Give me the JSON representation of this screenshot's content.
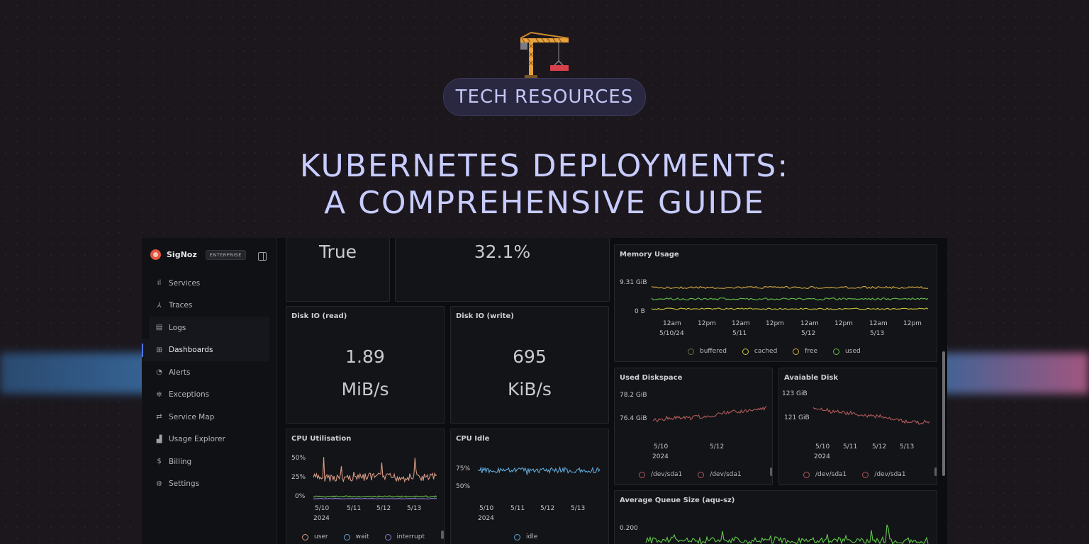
{
  "hero": {
    "pill": "TECH RESOURCES",
    "line1": "KUBERNETES DEPLOYMENTS:",
    "line2": "A COMPREHENSIVE GUIDE"
  },
  "app": {
    "brand": "SigNoz",
    "badge": "ENTERPRISE",
    "nav": [
      {
        "label": "Services",
        "icon": "bar-chart-icon"
      },
      {
        "label": "Traces",
        "icon": "traces-icon"
      },
      {
        "label": "Logs",
        "icon": "scroll-icon"
      },
      {
        "label": "Dashboards",
        "icon": "grid-icon"
      },
      {
        "label": "Alerts",
        "icon": "bell-icon"
      },
      {
        "label": "Exceptions",
        "icon": "bug-icon"
      },
      {
        "label": "Service Map",
        "icon": "route-icon"
      },
      {
        "label": "Usage Explorer",
        "icon": "chart-icon"
      },
      {
        "label": "Billing",
        "icon": "receipt-icon"
      },
      {
        "label": "Settings",
        "icon": "gear-icon"
      }
    ]
  },
  "panels": {
    "top_left_value": "True",
    "top_right_value": "32.1%",
    "disk_read": {
      "title": "Disk IO (read)",
      "value": "1.89",
      "unit": "MiB/s"
    },
    "disk_write": {
      "title": "Disk IO (write)",
      "value": "695",
      "unit": "KiB/s"
    },
    "cpu_util": {
      "title": "CPU Utilisation",
      "y_ticks": [
        "50%",
        "25%",
        "0%"
      ],
      "x_ticks": [
        "5/10",
        "5/11",
        "5/12",
        "5/13"
      ],
      "x_year": "2024",
      "legend": [
        "user",
        "wait",
        "interrupt"
      ]
    },
    "cpu_idle": {
      "title": "CPU Idle",
      "y_ticks": [
        "75%",
        "50%"
      ],
      "x_ticks": [
        "5/10",
        "5/11",
        "5/12",
        "5/13"
      ],
      "x_year": "2024",
      "legend": [
        "idle"
      ]
    },
    "memory": {
      "title": "Memory Usage",
      "y_ticks": [
        "9.31 GiB",
        "0 B"
      ],
      "x_ticks": [
        "12am",
        "12pm",
        "12am",
        "12pm",
        "12am",
        "12pm",
        "12am",
        "12pm"
      ],
      "x_dates": [
        "5/10/24",
        "5/11",
        "5/12",
        "5/13"
      ],
      "legend": [
        "buffered",
        "cached",
        "free",
        "used"
      ]
    },
    "used_disk": {
      "title": "Used Diskspace",
      "y_ticks": [
        "78.2 GiB",
        "76.4 GiB"
      ],
      "x_ticks": [
        "5/10",
        "5/12"
      ],
      "x_year": "2024",
      "legend": [
        "/dev/sda1",
        "/dev/sda1"
      ]
    },
    "avail_disk": {
      "title": "Avaiable Disk",
      "y_ticks": [
        "123 GiB",
        "121 GiB"
      ],
      "x_ticks": [
        "5/10",
        "5/11",
        "5/12",
        "5/13"
      ],
      "x_year": "2024",
      "legend": [
        "/dev/sda1",
        "/dev/sda1"
      ]
    },
    "queue": {
      "title": "Average Queue Size (aqu-sz)",
      "y_ticks": [
        "0.200"
      ]
    }
  },
  "colors": {
    "user": "#d79a86",
    "wait": "#6aa0d8",
    "interrupt": "#8b7bd8",
    "idle": "#5fa6d6",
    "buffered": "#6b6b4e",
    "cached": "#c8c63c",
    "free": "#d0a844",
    "used": "#64c24a",
    "disk": "#b05a5a",
    "queue": "#62c94a"
  }
}
